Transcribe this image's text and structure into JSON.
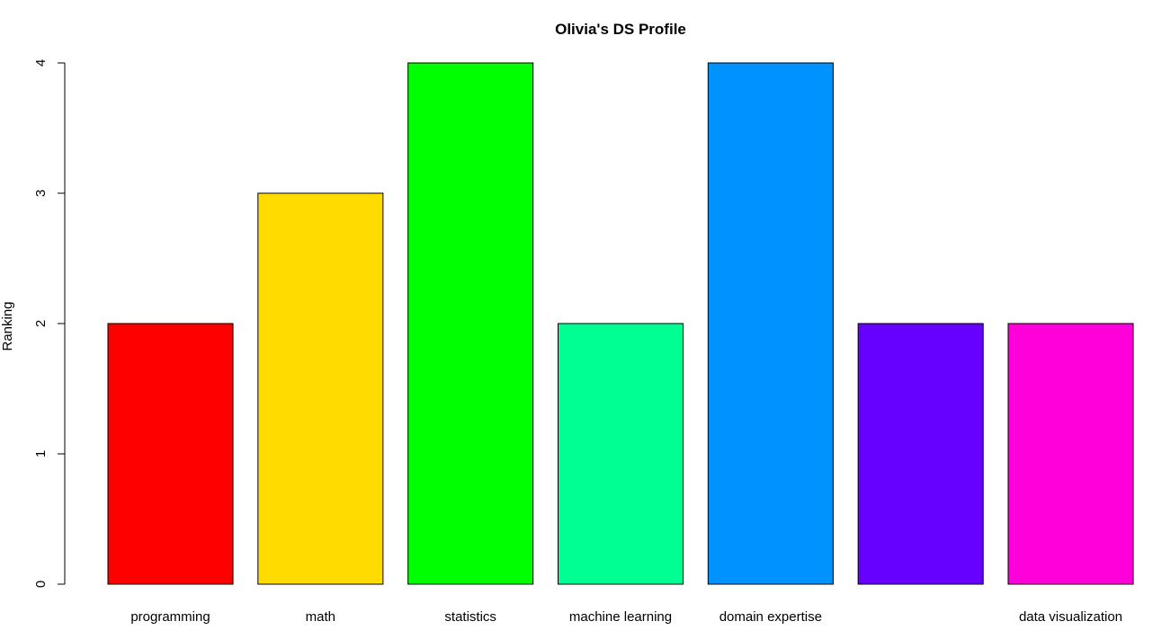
{
  "chart_data": {
    "type": "bar",
    "title": "Olivia's DS Profile",
    "xlabel": "",
    "ylabel": "Ranking",
    "ylim": [
      0,
      4
    ],
    "yticks": [
      0,
      1,
      2,
      3,
      4
    ],
    "grid": false,
    "legend": "none",
    "categories": [
      "programming",
      "math",
      "statistics",
      "machine learning",
      "domain expertise",
      "",
      "data visualization"
    ],
    "values": [
      2,
      3,
      4,
      2,
      4,
      2,
      2
    ],
    "colors": [
      "#FF0000",
      "#FFDB00",
      "#00FF00",
      "#00FF92",
      "#0092FF",
      "#6600FF",
      "#FF00DB"
    ]
  }
}
